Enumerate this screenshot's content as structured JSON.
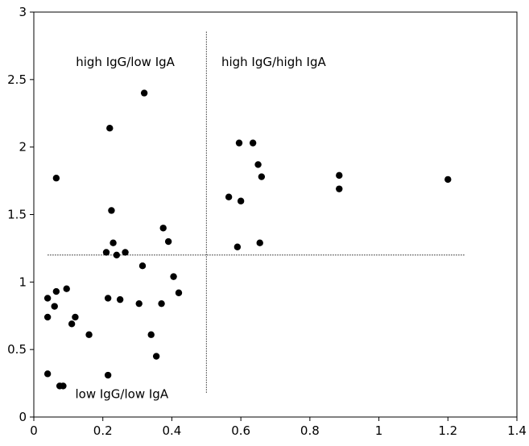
{
  "chart_data": {
    "type": "scatter",
    "title": "",
    "xlabel": "",
    "ylabel": "",
    "xlim": [
      0,
      1.4
    ],
    "ylim": [
      0,
      3
    ],
    "xticks": [
      0,
      0.2,
      0.4,
      0.6,
      0.8,
      1,
      1.2,
      1.4
    ],
    "xtick_labels": [
      "0",
      "0.2",
      "0.4",
      "0.6",
      "0.8",
      "1",
      "1.2",
      "1.4"
    ],
    "yticks": [
      0,
      0.5,
      1,
      1.5,
      2,
      2.5,
      3
    ],
    "ytick_labels": [
      "0",
      "0.5",
      "1",
      "1.5",
      "2",
      "2.5",
      "3"
    ],
    "grid": false,
    "legend": "none",
    "colors": {
      "marker": "#000000",
      "threshold_line": "#000000"
    },
    "thresholds": {
      "vertical": {
        "x": 0.5,
        "y_from": 0.18,
        "y_to": 2.86
      },
      "horizontal": {
        "y": 1.2,
        "x_from": 0.04,
        "x_to": 1.25
      }
    },
    "annotations": [
      {
        "id": "high-igg-low-iga",
        "text": "high IgG/low IgA",
        "x": 0.265,
        "y": 2.6
      },
      {
        "id": "high-igg-high-iga",
        "text": "high IgG/high IgA",
        "x": 0.695,
        "y": 2.6
      },
      {
        "id": "low-igg-low-iga",
        "text": "low IgG/low IgA",
        "x": 0.255,
        "y": 0.14
      }
    ],
    "series": [
      {
        "points": [
          [
            0.04,
            0.74
          ],
          [
            0.04,
            0.88
          ],
          [
            0.04,
            0.32
          ],
          [
            0.06,
            0.82
          ],
          [
            0.065,
            0.93
          ],
          [
            0.065,
            1.77
          ],
          [
            0.075,
            0.23
          ],
          [
            0.085,
            0.23
          ],
          [
            0.095,
            0.95
          ],
          [
            0.11,
            0.69
          ],
          [
            0.12,
            0.74
          ],
          [
            0.16,
            0.61
          ],
          [
            0.21,
            1.22
          ],
          [
            0.215,
            0.88
          ],
          [
            0.215,
            0.31
          ],
          [
            0.22,
            2.14
          ],
          [
            0.225,
            1.53
          ],
          [
            0.23,
            1.29
          ],
          [
            0.24,
            1.2
          ],
          [
            0.25,
            0.87
          ],
          [
            0.265,
            1.22
          ],
          [
            0.305,
            0.84
          ],
          [
            0.315,
            1.12
          ],
          [
            0.32,
            2.4
          ],
          [
            0.34,
            0.61
          ],
          [
            0.355,
            0.45
          ],
          [
            0.37,
            0.84
          ],
          [
            0.375,
            1.4
          ],
          [
            0.39,
            1.3
          ],
          [
            0.405,
            1.04
          ],
          [
            0.42,
            0.92
          ],
          [
            0.565,
            1.63
          ],
          [
            0.59,
            1.26
          ],
          [
            0.595,
            2.03
          ],
          [
            0.6,
            1.6
          ],
          [
            0.635,
            2.03
          ],
          [
            0.65,
            1.87
          ],
          [
            0.655,
            1.29
          ],
          [
            0.66,
            1.78
          ],
          [
            0.885,
            1.79
          ],
          [
            0.885,
            1.69
          ],
          [
            1.2,
            1.76
          ]
        ]
      }
    ]
  }
}
